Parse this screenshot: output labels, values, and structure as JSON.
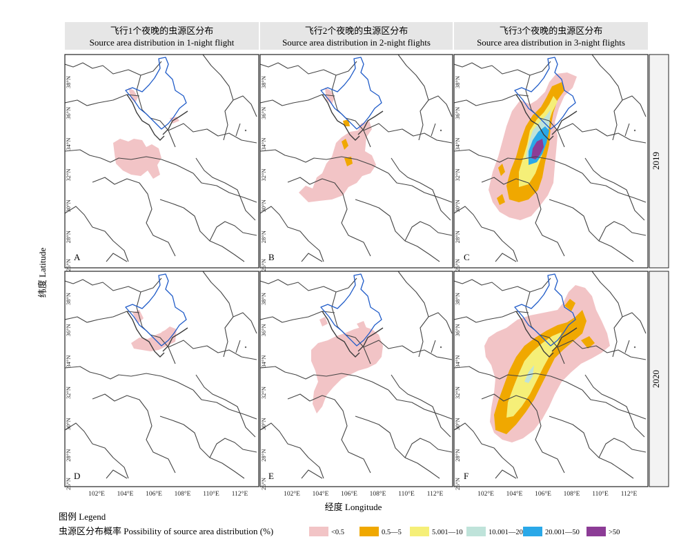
{
  "headers": [
    {
      "zh": "飞行1个夜晚的虫源区分布",
      "en": "Source area distribution in 1-night flight"
    },
    {
      "zh": "飞行2个夜晚的虫源区分布",
      "en": "Source area distribution in 2-night flights"
    },
    {
      "zh": "飞行3个夜晚的虫源区分布",
      "en": "Source area distribution in 3-night flights"
    }
  ],
  "row_labels": [
    "2019",
    "2020"
  ],
  "panel_letters": [
    "A",
    "B",
    "C",
    "D",
    "E",
    "F"
  ],
  "lat_ticks": [
    "38°N",
    "36°N",
    "34°N",
    "32°N",
    "30°N",
    "28°N",
    "26°N"
  ],
  "lon_ticks": [
    "102°E",
    "104°E",
    "106°E",
    "108°E",
    "110°E",
    "112°E"
  ],
  "y_axis_label": "纬度 Latitude",
  "x_axis_label": "经度 Longitude",
  "legend": {
    "title": "图例 Legend",
    "subtitle": "虫源区分布概率 Possibility of source area distribution (%)",
    "items": [
      {
        "label": "<0.5",
        "color": "#f2c4c6"
      },
      {
        "label": "0.5—5",
        "color": "#f0a800"
      },
      {
        "label": "5.001—10",
        "color": "#f5ef78"
      },
      {
        "label": "10.001—20",
        "color": "#bfe3da"
      },
      {
        "label": "20.001—50",
        "color": "#2aa8e8"
      },
      {
        "label": ">50",
        "color": "#8c3c96"
      }
    ]
  },
  "colors": {
    "header_bg": "#e6e6e6",
    "basin_boundary": "#1f5bc8",
    "province_border": "#3c3c3c"
  }
}
